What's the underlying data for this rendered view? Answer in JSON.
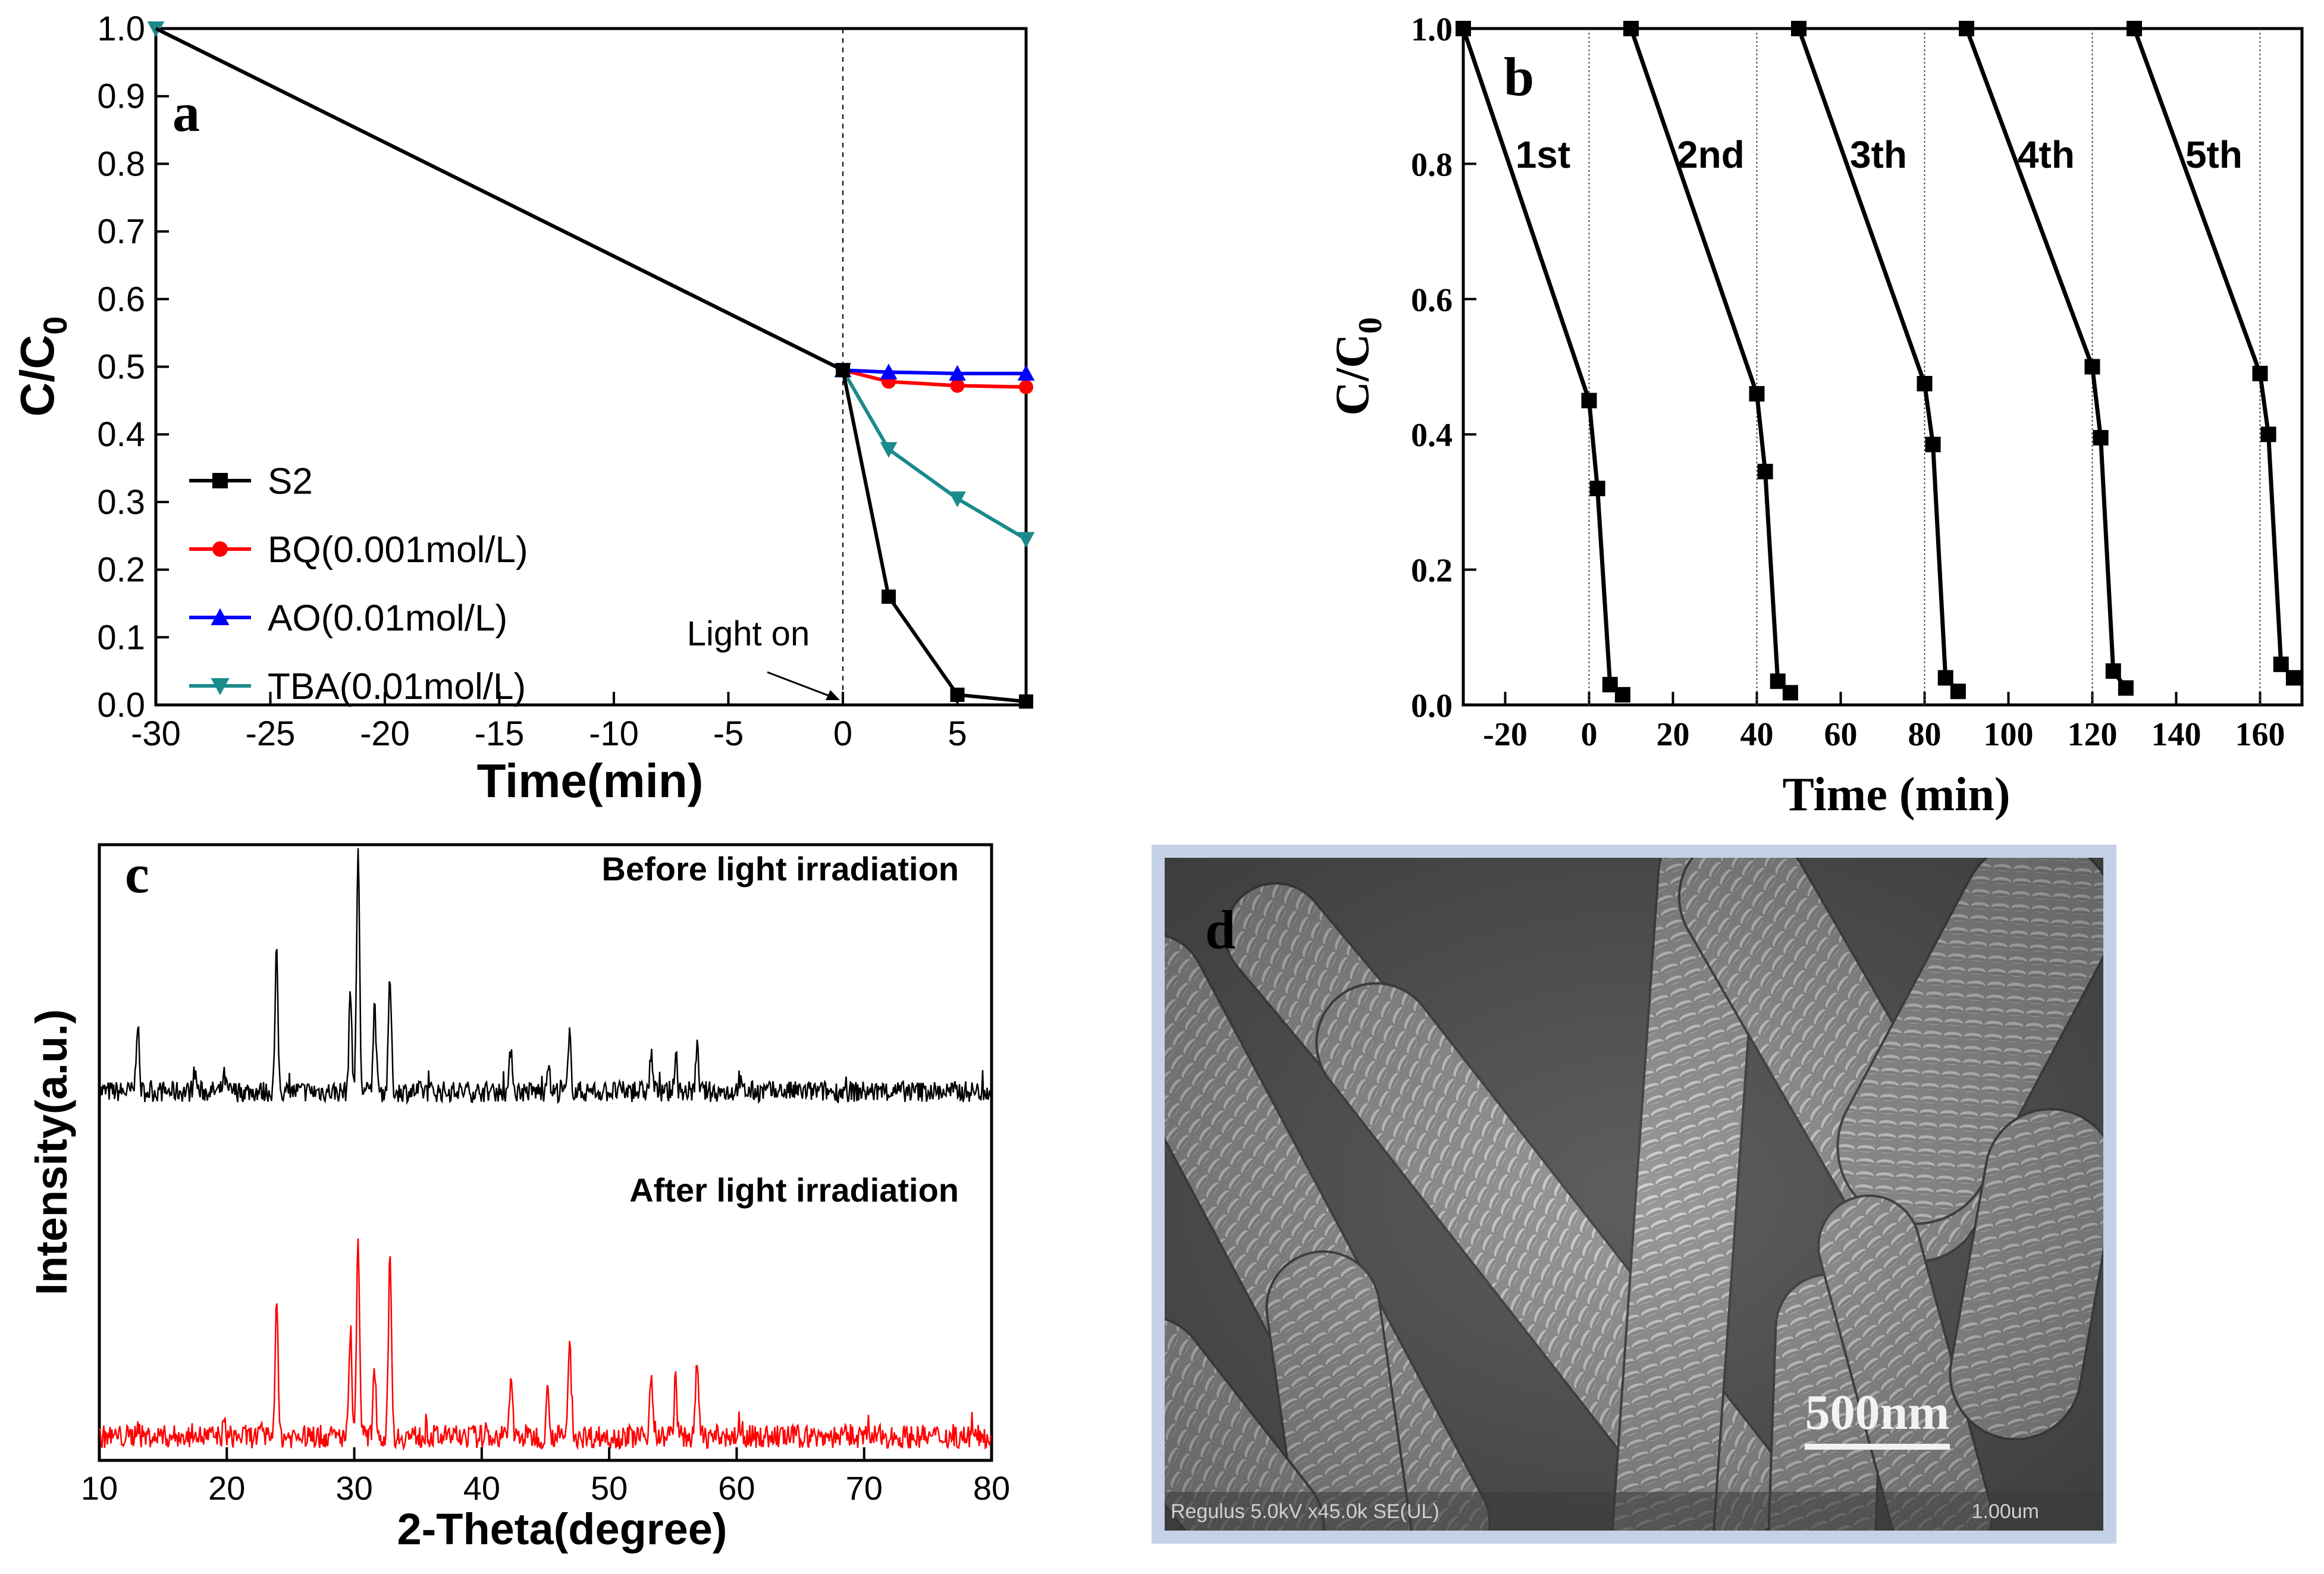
{
  "chart_data": [
    {
      "panel": "a",
      "type": "line",
      "xlabel": "Time(min)",
      "ylabel": "C/C0",
      "xlim": [
        -30,
        8
      ],
      "ylim": [
        0,
        1.0
      ],
      "xticks": [
        -30,
        -25,
        -20,
        -15,
        -10,
        -5,
        0,
        5
      ],
      "yticks": [
        0.0,
        0.1,
        0.2,
        0.3,
        0.4,
        0.5,
        0.6,
        0.7,
        0.8,
        0.9,
        1.0
      ],
      "xtick_labels": [
        "-30",
        "-25",
        "-20",
        "-15",
        "-10",
        "-5",
        "0",
        "5"
      ],
      "ytick_labels": [
        "0.0",
        "0.1",
        "0.2",
        "0.3",
        "0.4",
        "0.5",
        "0.6",
        "0.7",
        "0.8",
        "0.9",
        "1.0"
      ],
      "series": [
        {
          "name": "S2",
          "color": "#000000",
          "marker": "square",
          "x": [
            -30,
            0,
            2,
            5,
            8
          ],
          "y": [
            1.0,
            0.495,
            0.16,
            0.015,
            0.005
          ]
        },
        {
          "name": "BQ(0.001mol/L)",
          "color": "#ff0000",
          "marker": "circle",
          "x": [
            -30,
            0,
            2,
            5,
            8
          ],
          "y": [
            1.0,
            0.495,
            0.478,
            0.472,
            0.47
          ]
        },
        {
          "name": "AO(0.01mol/L)",
          "color": "#0000ff",
          "marker": "triangle-up",
          "x": [
            -30,
            0,
            2,
            5,
            8
          ],
          "y": [
            1.0,
            0.495,
            0.492,
            0.49,
            0.49
          ]
        },
        {
          "name": "TBA(0.01mol/L)",
          "color": "#1a8a8a",
          "marker": "triangle-down",
          "x": [
            -30,
            0,
            2,
            5,
            8
          ],
          "y": [
            1.0,
            0.495,
            0.378,
            0.305,
            0.245
          ]
        }
      ],
      "annotation": "Light on",
      "panel_label": "a"
    },
    {
      "panel": "b",
      "type": "line",
      "xlabel": "Time (min)",
      "ylabel": "C/C0",
      "xlim": [
        -30,
        170
      ],
      "ylim": [
        0,
        1.0
      ],
      "xticks": [
        -20,
        0,
        20,
        40,
        60,
        80,
        100,
        120,
        140,
        160
      ],
      "yticks": [
        0.0,
        0.2,
        0.4,
        0.6,
        0.8,
        1.0
      ],
      "xtick_labels": [
        "-20",
        "0",
        "20",
        "40",
        "60",
        "80",
        "100",
        "120",
        "140",
        "160"
      ],
      "ytick_labels": [
        "0.0",
        "0.2",
        "0.4",
        "0.6",
        "0.8",
        "1.0"
      ],
      "cycle_labels": [
        "1st",
        "2nd",
        "3th",
        "4th",
        "5th"
      ],
      "cycles": [
        {
          "x": [
            -30,
            0,
            2,
            5,
            8
          ],
          "y": [
            1.0,
            0.45,
            0.32,
            0.03,
            0.015
          ]
        },
        {
          "x": [
            10,
            40,
            42,
            45,
            48
          ],
          "y": [
            1.0,
            0.46,
            0.345,
            0.035,
            0.018
          ]
        },
        {
          "x": [
            50,
            80,
            82,
            85,
            88
          ],
          "y": [
            1.0,
            0.475,
            0.385,
            0.04,
            0.02
          ]
        },
        {
          "x": [
            90,
            120,
            122,
            125,
            128
          ],
          "y": [
            1.0,
            0.5,
            0.395,
            0.05,
            0.025
          ]
        },
        {
          "x": [
            130,
            160,
            162,
            165,
            168
          ],
          "y": [
            1.0,
            0.49,
            0.4,
            0.06,
            0.04
          ]
        }
      ],
      "panel_label": "b"
    },
    {
      "panel": "c",
      "type": "line",
      "xlabel": "2-Theta(degree)",
      "ylabel": "Intensity(a.u.)",
      "xlim": [
        10,
        80
      ],
      "xticks": [
        10,
        20,
        30,
        40,
        50,
        60,
        70,
        80
      ],
      "xtick_labels": [
        "10",
        "20",
        "30",
        "40",
        "50",
        "60",
        "70",
        "80"
      ],
      "peaks": [
        {
          "x": 13.0,
          "h1": 0.28,
          "h2": 0.05
        },
        {
          "x": 17.5,
          "h1": 0.08,
          "h2": 0.04
        },
        {
          "x": 19.8,
          "h1": 0.06,
          "h2": 0.04
        },
        {
          "x": 23.9,
          "h1": 0.55,
          "h2": 0.5
        },
        {
          "x": 29.7,
          "h1": 0.4,
          "h2": 0.4
        },
        {
          "x": 30.3,
          "h1": 0.98,
          "h2": 0.75
        },
        {
          "x": 31.6,
          "h1": 0.35,
          "h2": 0.25
        },
        {
          "x": 32.8,
          "h1": 0.45,
          "h2": 0.7
        },
        {
          "x": 42.3,
          "h1": 0.18,
          "h2": 0.22
        },
        {
          "x": 45.2,
          "h1": 0.12,
          "h2": 0.18
        },
        {
          "x": 46.9,
          "h1": 0.22,
          "h2": 0.35
        },
        {
          "x": 53.3,
          "h1": 0.15,
          "h2": 0.25
        },
        {
          "x": 55.2,
          "h1": 0.12,
          "h2": 0.2
        },
        {
          "x": 56.9,
          "h1": 0.17,
          "h2": 0.28
        },
        {
          "x": 60.2,
          "h1": 0.05,
          "h2": 0.05
        }
      ],
      "series": [
        {
          "name": "Before light irradiation",
          "color": "#000000"
        },
        {
          "name": "After light irradiation",
          "color": "#ff0000"
        }
      ],
      "panel_label": "c"
    }
  ],
  "sem_image": {
    "panel_label": "d",
    "scale_bar": "500nm",
    "info_text": "Regulus 5.0kV x45.0k SE(UL)",
    "info_scale": "1.00um"
  }
}
